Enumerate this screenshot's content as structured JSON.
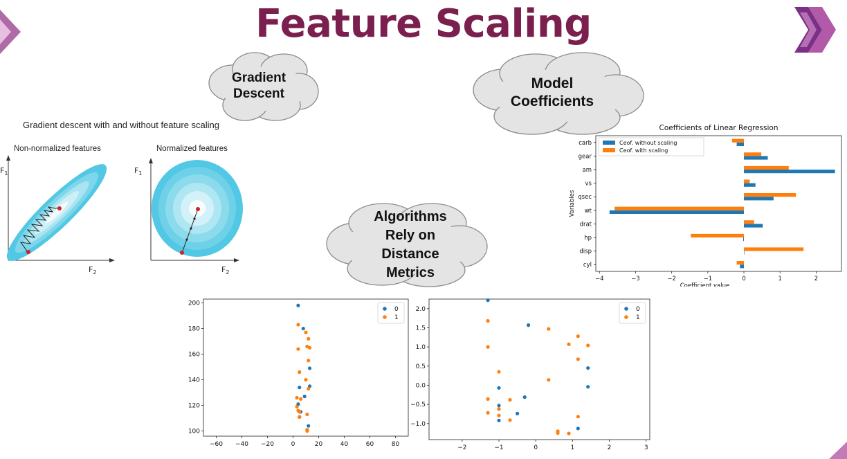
{
  "slide": {
    "title": "Feature Scaling",
    "colors": {
      "title": "#7a1f4e",
      "accent_dark": "#6a2a78",
      "accent_light": "#c66fb1",
      "cloud_fill": "#e4e4e4",
      "cloud_stroke": "#888888"
    },
    "icons": [
      "left-arrow-decoration-icon",
      "double-chevron-logo-icon",
      "corner-triangle-icon"
    ]
  },
  "clouds": {
    "gradient": "Gradient\nDescent",
    "model": "Model\nCoefficients",
    "distance": "Algorithms\nRely on\nDistance\nMetrics"
  },
  "gradient_figure": {
    "title": "Gradient descent with and without feature scaling",
    "left_panel": {
      "title": "Non-normalized features",
      "y_axis": "F",
      "y_sub": "1",
      "x_axis": "F",
      "x_sub": "2"
    },
    "right_panel": {
      "title": "Normalized features",
      "y_axis": "F",
      "y_sub": "1",
      "x_axis": "F",
      "x_sub": "2"
    }
  },
  "chart_data": [
    {
      "type": "bar",
      "orientation": "horizontal",
      "title": "Coefficients of Linear Regression",
      "xlabel": "Coefficient value",
      "ylabel": "Variables",
      "categories": [
        "cyl",
        "disp",
        "hp",
        "drat",
        "wt",
        "qsec",
        "vs",
        "am",
        "gear",
        "carb"
      ],
      "series": [
        {
          "name": "Ceof. without scaling",
          "color": "#1f77b4",
          "values": [
            -0.11,
            0.01,
            -0.02,
            0.52,
            -3.72,
            0.82,
            0.32,
            2.52,
            0.66,
            -0.2
          ]
        },
        {
          "name": "Ceof. with scaling",
          "color": "#ff7f0e",
          "values": [
            -0.2,
            1.65,
            -1.47,
            0.28,
            -3.58,
            1.44,
            0.16,
            1.24,
            0.48,
            -0.33
          ]
        }
      ],
      "xlim": [
        -4.1,
        2.7
      ],
      "xticks": [
        "−4",
        "−3",
        "−2",
        "−1",
        "0",
        "1",
        "2"
      ],
      "xtick_values": [
        -4,
        -3,
        -2,
        -1,
        0,
        1,
        2
      ],
      "legend": "upper-left",
      "grid": false
    },
    {
      "type": "scatter",
      "xlim": [
        -70,
        90
      ],
      "ylim": [
        96,
        203
      ],
      "xticks": [
        -60,
        -40,
        -20,
        0,
        20,
        40,
        60,
        80
      ],
      "yticks": [
        100,
        120,
        140,
        160,
        180,
        200
      ],
      "legend": "upper-right",
      "series": [
        {
          "name": "0",
          "color": "#1f77b4",
          "points": [
            [
              4,
              198
            ],
            [
              8,
              180
            ],
            [
              13,
              149
            ],
            [
              13,
              135
            ],
            [
              5,
              134
            ],
            [
              9,
              127
            ],
            [
              4,
              121
            ],
            [
              12,
              104
            ],
            [
              6,
              115
            ],
            [
              5,
              111
            ]
          ]
        },
        {
          "name": "1",
          "color": "#ff7f0e",
          "points": [
            [
              4,
              183
            ],
            [
              10,
              177
            ],
            [
              12,
              172
            ],
            [
              11,
              166
            ],
            [
              13,
              165
            ],
            [
              4,
              164
            ],
            [
              12,
              155
            ],
            [
              5,
              146
            ],
            [
              10,
              140
            ],
            [
              12,
              133
            ],
            [
              3,
              126
            ],
            [
              6,
              125
            ],
            [
              3,
              119
            ],
            [
              4,
              116
            ],
            [
              5,
              115
            ],
            [
              11,
              113
            ],
            [
              5,
              111
            ],
            [
              11,
              101
            ],
            [
              11,
              100
            ]
          ]
        }
      ]
    },
    {
      "type": "scatter",
      "xlim": [
        -2.9,
        3.1
      ],
      "ylim": [
        -1.42,
        2.25
      ],
      "xticks": [
        -2,
        -1,
        0,
        1,
        2,
        3
      ],
      "yticks": [
        -1.0,
        -0.5,
        0.0,
        0.5,
        1.0,
        1.5,
        2.0
      ],
      "ytick_labels": [
        "−1.0",
        "−0.5",
        "0.0",
        "0.5",
        "1.0",
        "1.5",
        "2.0"
      ],
      "xtick_labels": [
        "−2",
        "−1",
        "0",
        "1",
        "2",
        "3"
      ],
      "legend": "upper-right",
      "series": [
        {
          "name": "0",
          "color": "#1f77b4",
          "points": [
            [
              -1.3,
              2.22
            ],
            [
              -0.2,
              1.57
            ],
            [
              1.42,
              0.45
            ],
            [
              1.42,
              -0.04
            ],
            [
              -1.0,
              -0.07
            ],
            [
              -0.3,
              -0.31
            ],
            [
              -1.0,
              -0.53
            ],
            [
              -0.5,
              -0.74
            ],
            [
              -1.0,
              -0.92
            ],
            [
              1.15,
              -1.13
            ]
          ]
        },
        {
          "name": "1",
          "color": "#ff7f0e",
          "points": [
            [
              -1.3,
              1.68
            ],
            [
              0.35,
              1.47
            ],
            [
              1.15,
              1.28
            ],
            [
              0.9,
              1.07
            ],
            [
              1.42,
              1.04
            ],
            [
              -1.3,
              1.0
            ],
            [
              1.15,
              0.68
            ],
            [
              -1.0,
              0.35
            ],
            [
              0.35,
              0.14
            ],
            [
              -1.3,
              -0.36
            ],
            [
              -0.7,
              -0.38
            ],
            [
              -1.0,
              -0.62
            ],
            [
              -1.3,
              -0.72
            ],
            [
              -1.0,
              -0.79
            ],
            [
              1.15,
              -0.82
            ],
            [
              -0.7,
              -0.91
            ],
            [
              0.6,
              -1.2
            ],
            [
              0.6,
              -1.25
            ],
            [
              0.9,
              -1.26
            ]
          ]
        }
      ]
    }
  ]
}
